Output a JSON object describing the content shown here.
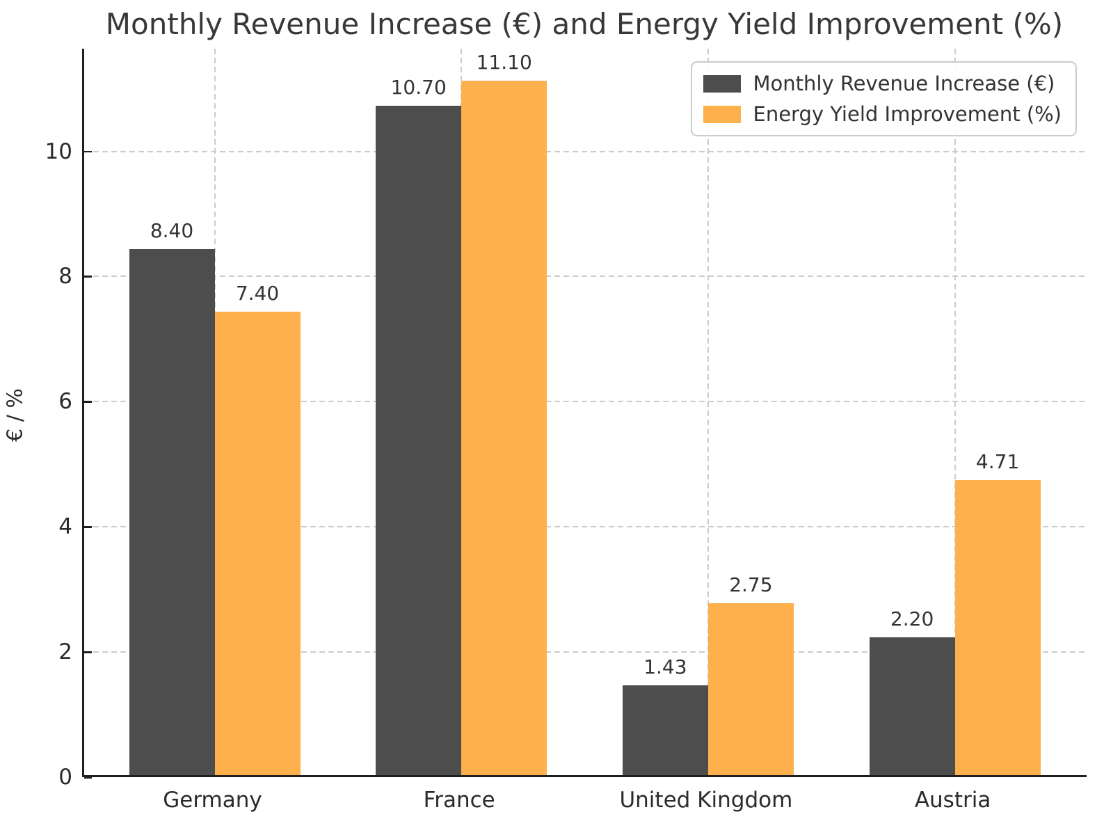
{
  "chart_data": {
    "type": "bar",
    "title": "Monthly Revenue Increase (€) and Energy Yield Improvement (%)",
    "xlabel": "",
    "ylabel": "€ / %",
    "categories": [
      "Germany",
      "France",
      "United Kingdom",
      "Austria"
    ],
    "series": [
      {
        "name": "Monthly Revenue Increase (€)",
        "color": "#4d4d4d",
        "values": [
          8.4,
          10.7,
          1.43,
          2.2
        ],
        "labels": [
          "8.40",
          "10.70",
          "1.43",
          "2.20"
        ]
      },
      {
        "name": "Energy Yield Improvement (%)",
        "color": "#fdb04c",
        "values": [
          7.4,
          11.1,
          2.75,
          4.71
        ],
        "labels": [
          "7.40",
          "11.10",
          "2.75",
          "4.71"
        ]
      }
    ],
    "ylim": [
      0,
      11.64
    ],
    "yticks": [
      0,
      2,
      4,
      6,
      8,
      10
    ],
    "grid": true,
    "grid_style": "dashed",
    "legend_position": "upper right",
    "spine_color": "#1f1f1f",
    "grid_color": "#cbcbcb"
  }
}
